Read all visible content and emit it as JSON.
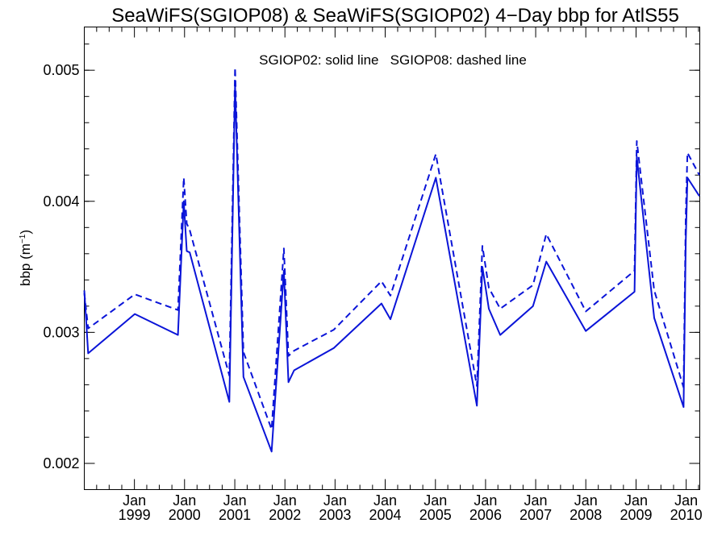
{
  "chart_data": {
    "type": "line",
    "title": "SeaWiFS(SGIOP08) & SeaWiFS(SGIOP02) 4−Day bbp for AtlS55",
    "ylabel_base": "bbp (m",
    "ylabel_sup": "−1",
    "ylabel_close": ")",
    "annotation": "SGIOP02: solid line   SGIOP08: dashed line",
    "line_color": "#0a14d8",
    "xlim": [
      "1998-01-01",
      "2010-04-10"
    ],
    "ylim": [
      0.0018,
      0.00533
    ],
    "yticks": [
      {
        "value": 0.002,
        "label": "0.002"
      },
      {
        "value": 0.003,
        "label": "0.003"
      },
      {
        "value": 0.004,
        "label": "0.004"
      },
      {
        "value": 0.005,
        "label": "0.005"
      }
    ],
    "xticks": [
      {
        "date": "1999-01-01",
        "month": "Jan",
        "year": "1999"
      },
      {
        "date": "2000-01-01",
        "month": "Jan",
        "year": "2000"
      },
      {
        "date": "2001-01-01",
        "month": "Jan",
        "year": "2001"
      },
      {
        "date": "2002-01-01",
        "month": "Jan",
        "year": "2002"
      },
      {
        "date": "2003-01-01",
        "month": "Jan",
        "year": "2003"
      },
      {
        "date": "2004-01-01",
        "month": "Jan",
        "year": "2004"
      },
      {
        "date": "2005-01-01",
        "month": "Jan",
        "year": "2005"
      },
      {
        "date": "2006-01-01",
        "month": "Jan",
        "year": "2006"
      },
      {
        "date": "2007-01-01",
        "month": "Jan",
        "year": "2007"
      },
      {
        "date": "2008-01-01",
        "month": "Jan",
        "year": "2008"
      },
      {
        "date": "2009-01-01",
        "month": "Jan",
        "year": "2009"
      },
      {
        "date": "2010-01-01",
        "month": "Jan",
        "year": "2010"
      }
    ],
    "series": [
      {
        "style": "solid",
        "points": [
          [
            "1998-01-01",
            0.00332
          ],
          [
            "1998-01-29",
            0.00284
          ],
          [
            "1999-01-04",
            0.00314
          ],
          [
            "1999-11-14",
            0.00298
          ],
          [
            "1999-12-26",
            0.004
          ],
          [
            "2000-01-17",
            0.00362
          ],
          [
            "2000-02-08",
            0.00361
          ],
          [
            "2000-11-22",
            0.00247
          ],
          [
            "2001-01-03",
            0.00489
          ],
          [
            "2001-03-05",
            0.00266
          ],
          [
            "2001-09-26",
            0.00209
          ],
          [
            "2001-12-24",
            0.00347
          ],
          [
            "2002-01-27",
            0.00262
          ],
          [
            "2002-03-09",
            0.00271
          ],
          [
            "2002-12-23",
            0.00288
          ],
          [
            "2003-12-05",
            0.00322
          ],
          [
            "2004-02-08",
            0.0031
          ],
          [
            "2005-01-04",
            0.00418
          ],
          [
            "2005-10-30",
            0.00244
          ],
          [
            "2005-12-09",
            0.0035
          ],
          [
            "2006-01-25",
            0.00318
          ],
          [
            "2006-04-18",
            0.00298
          ],
          [
            "2006-12-12",
            0.0032
          ],
          [
            "2007-03-19",
            0.00354
          ],
          [
            "2008-01-01",
            0.00301
          ],
          [
            "2008-12-21",
            0.00331
          ],
          [
            "2009-01-06",
            0.00434
          ],
          [
            "2009-05-13",
            0.00311
          ],
          [
            "2009-12-13",
            0.00243
          ],
          [
            "2009-12-29",
            0.00369
          ],
          [
            "2010-01-10",
            0.00418
          ],
          [
            "2010-04-07",
            0.00404
          ]
        ]
      },
      {
        "style": "dashed",
        "points": [
          [
            "1998-01-01",
            0.0033
          ],
          [
            "1998-01-29",
            0.00303
          ],
          [
            "1999-01-04",
            0.00329
          ],
          [
            "1999-11-14",
            0.00317
          ],
          [
            "1999-12-26",
            0.00418
          ],
          [
            "2000-01-17",
            0.00383
          ],
          [
            "2000-02-08",
            0.00378
          ],
          [
            "2000-11-22",
            0.00267
          ],
          [
            "2001-01-03",
            0.00502
          ],
          [
            "2001-03-05",
            0.00285
          ],
          [
            "2001-09-26",
            0.00226
          ],
          [
            "2001-12-24",
            0.00364
          ],
          [
            "2002-01-27",
            0.00282
          ],
          [
            "2002-03-09",
            0.00286
          ],
          [
            "2002-12-23",
            0.00302
          ],
          [
            "2003-12-05",
            0.00339
          ],
          [
            "2004-02-08",
            0.00328
          ],
          [
            "2005-01-04",
            0.00436
          ],
          [
            "2005-10-30",
            0.00259
          ],
          [
            "2005-12-09",
            0.00366
          ],
          [
            "2006-01-25",
            0.00334
          ],
          [
            "2006-04-18",
            0.00318
          ],
          [
            "2006-12-12",
            0.00336
          ],
          [
            "2007-03-19",
            0.00375
          ],
          [
            "2008-01-01",
            0.00316
          ],
          [
            "2008-12-21",
            0.00347
          ],
          [
            "2009-01-06",
            0.00446
          ],
          [
            "2009-05-13",
            0.00332
          ],
          [
            "2009-12-13",
            0.00258
          ],
          [
            "2009-12-29",
            0.00389
          ],
          [
            "2010-01-10",
            0.00437
          ],
          [
            "2010-04-07",
            0.0042
          ]
        ]
      }
    ]
  }
}
